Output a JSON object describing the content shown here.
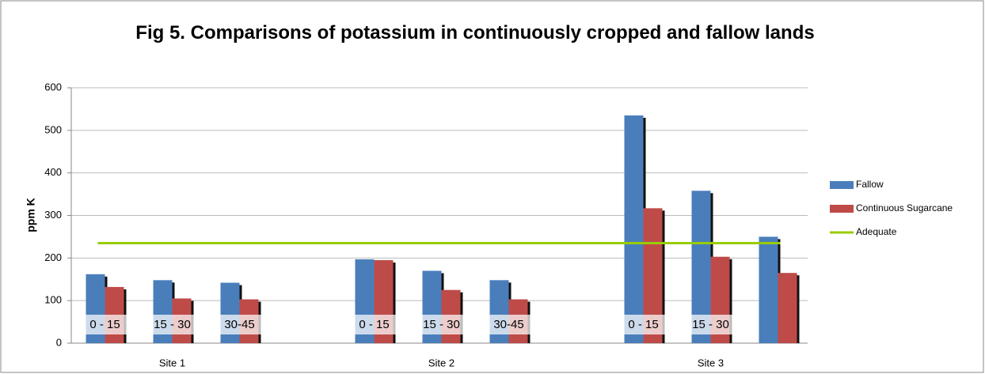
{
  "chart_data": {
    "type": "bar",
    "title": "Fig 5. Comparisons of potassium in continuously cropped and fallow lands",
    "y_label": "ppm K",
    "categories": [
      "0 - 15",
      "15 - 30",
      "30-45",
      null,
      "0 - 15",
      "15 - 30",
      "30-45",
      null,
      "0 - 15",
      "15 - 30",
      null
    ],
    "group_labels": [
      "Site 1",
      "Site 2",
      "Site 3"
    ],
    "series": [
      {
        "name": "Fallow",
        "color": "#4a7ebb",
        "values": [
          162,
          148,
          142,
          null,
          197,
          170,
          148,
          null,
          535,
          358,
          250
        ]
      },
      {
        "name": "Continuous Sugarcane",
        "color": "#be4b48",
        "values": [
          132,
          105,
          103,
          null,
          195,
          125,
          103,
          null,
          317,
          203,
          165
        ]
      },
      {
        "name": "Adequate",
        "type": "line",
        "color": "#99cc00",
        "values": [
          235,
          235,
          235,
          235,
          235,
          235,
          235,
          235,
          235,
          235,
          235
        ]
      }
    ],
    "ylim": [
      0,
      600
    ],
    "yticks": [
      0,
      100,
      200,
      300,
      400,
      500,
      600
    ],
    "grid": true,
    "legend": "right"
  }
}
